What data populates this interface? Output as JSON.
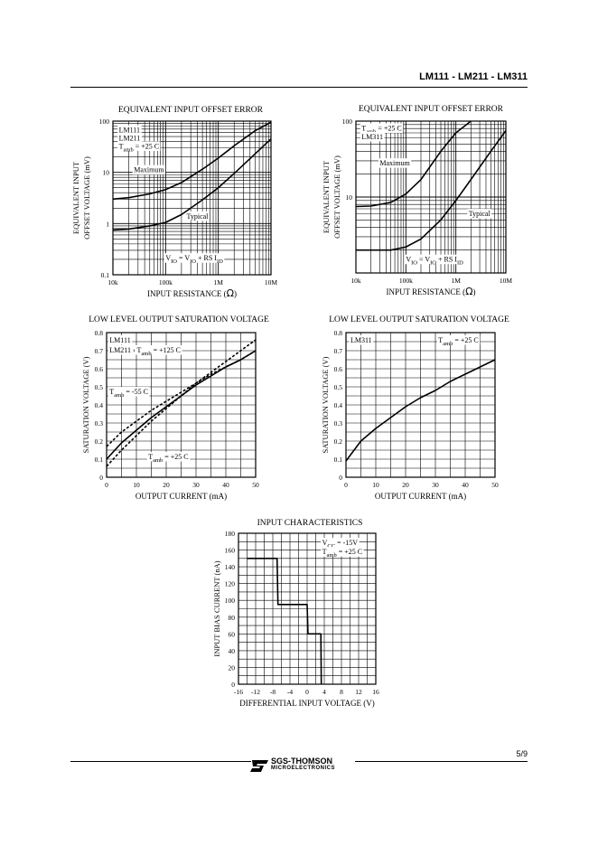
{
  "header": {
    "title": "LM111 - LM211 - LM311"
  },
  "footer": {
    "page": "5/9",
    "logo_line1": "SGS-THOMSON",
    "logo_line2": "MICROELECTRONICS"
  },
  "chart_data": [
    {
      "id": "c1",
      "type": "line",
      "title": "EQUIVALENT INPUT OFFSET ERROR",
      "xscale": "log",
      "yscale": "log",
      "xlim": [
        10000,
        10000000
      ],
      "ylim": [
        0.1,
        100
      ],
      "xlabel": "INPUT RESISTANCE (Ω)",
      "ylabel": [
        "EQUIVALENT INPUT",
        "OFFSET VOLTAGE (mV)"
      ],
      "xticks": [
        {
          "v": 10000,
          "t": "10k"
        },
        {
          "v": 100000,
          "t": "100k"
        },
        {
          "v": 1000000,
          "t": "1M"
        },
        {
          "v": 10000000,
          "t": "10M"
        }
      ],
      "yticks": [
        {
          "v": 0.1,
          "t": "0.1"
        },
        {
          "v": 1,
          "t": "1"
        },
        {
          "v": 10,
          "t": "10"
        },
        {
          "v": 100,
          "t": "100"
        }
      ],
      "series": [
        {
          "name": "Maximum",
          "style": "solid",
          "x": [
            10000,
            20000,
            50000,
            100000,
            200000,
            500000,
            1000000,
            2000000,
            5000000,
            10000000
          ],
          "y": [
            3,
            3.2,
            3.8,
            4.6,
            6.3,
            11.5,
            19,
            33,
            65,
            95
          ]
        },
        {
          "name": "Typical",
          "style": "solid",
          "x": [
            10000,
            20000,
            50000,
            100000,
            200000,
            500000,
            1000000,
            2000000,
            5000000,
            10000000
          ],
          "y": [
            0.75,
            0.78,
            0.9,
            1.05,
            1.5,
            2.9,
            5,
            9.5,
            23,
            45
          ]
        }
      ],
      "annotations": [
        {
          "text": "LM111",
          "x": 13000,
          "y": 60
        },
        {
          "text": "LM211",
          "x": 13000,
          "y": 42
        },
        {
          "text": "Tamb = +25 C",
          "x": 13000,
          "y": 29
        },
        {
          "text": "Maximum",
          "x": 25000,
          "y": 10
        },
        {
          "text": "Typical",
          "x": 250000,
          "y": 1.25
        },
        {
          "text": "VIO = VIO + RS IID",
          "x": 100000,
          "y": 0.19
        }
      ]
    },
    {
      "id": "c2",
      "type": "line",
      "title": "EQUIVALENT INPUT OFFSET ERROR",
      "xscale": "log",
      "yscale": "log",
      "xlim": [
        10000,
        10000000
      ],
      "ylim": [
        1,
        100
      ],
      "xlabel": "INPUT RESISTANCE (Ω)",
      "ylabel": [
        "EQUIVALENT INPUT",
        "OFFSET VOLTAGE (mV)"
      ],
      "xticks": [
        {
          "v": 10000,
          "t": "10k"
        },
        {
          "v": 100000,
          "t": "100k"
        },
        {
          "v": 1000000,
          "t": "1M"
        },
        {
          "v": 10000000,
          "t": "10M"
        }
      ],
      "yticks": [
        {
          "v": 10,
          "t": "10"
        },
        {
          "v": 100,
          "t": "100"
        }
      ],
      "series": [
        {
          "name": "Maximum",
          "style": "solid",
          "x": [
            10000,
            20000,
            50000,
            100000,
            200000,
            500000,
            1000000,
            2000000
          ],
          "y": [
            7.5,
            7.6,
            8.5,
            11,
            17,
            40,
            70,
            100
          ]
        },
        {
          "name": "Typical",
          "style": "solid",
          "x": [
            10000,
            50000,
            100000,
            200000,
            500000,
            1000000,
            2000000,
            5000000,
            10000000
          ],
          "y": [
            2,
            2,
            2.2,
            2.8,
            5,
            9,
            17,
            40,
            75
          ]
        }
      ],
      "annotations": [
        {
          "text": "Tamb = +25 C",
          "x": 13000,
          "y": 75
        },
        {
          "text": "LM311",
          "x": 13000,
          "y": 58
        },
        {
          "text": "Maximum",
          "x": 30000,
          "y": 26
        },
        {
          "text": "Typical",
          "x": 1800000,
          "y": 5.6
        },
        {
          "text": "VIO = VIO + RS IID",
          "x": 100000,
          "y": 1.4
        }
      ]
    },
    {
      "id": "c3",
      "type": "line",
      "title": "LOW LEVEL OUTPUT SATURATION VOLTAGE",
      "xlim": [
        0,
        50
      ],
      "ylim": [
        0,
        0.8
      ],
      "xlabel": "OUTPUT CURRENT (mA)",
      "ylabel": [
        "SATURATION VOLTAGE (V)"
      ],
      "xticks": [
        {
          "v": 0,
          "t": "0"
        },
        {
          "v": 10,
          "t": "10"
        },
        {
          "v": 20,
          "t": "20"
        },
        {
          "v": 30,
          "t": "30"
        },
        {
          "v": 40,
          "t": "40"
        },
        {
          "v": 50,
          "t": "50"
        }
      ],
      "yticks": [
        {
          "v": 0,
          "t": "0"
        },
        {
          "v": 0.1,
          "t": "0.1"
        },
        {
          "v": 0.2,
          "t": "0.2"
        },
        {
          "v": 0.3,
          "t": "0.3"
        },
        {
          "v": 0.4,
          "t": "0.4"
        },
        {
          "v": 0.5,
          "t": "0.5"
        },
        {
          "v": 0.6,
          "t": "0.6"
        },
        {
          "v": 0.7,
          "t": "0.7"
        },
        {
          "v": 0.8,
          "t": "0.8"
        }
      ],
      "series": [
        {
          "name": "Tamb = +25 C",
          "style": "solid",
          "x": [
            0,
            5,
            10,
            15,
            20,
            25,
            30,
            35,
            40,
            45,
            50
          ],
          "y": [
            0.1,
            0.19,
            0.26,
            0.33,
            0.39,
            0.45,
            0.51,
            0.56,
            0.61,
            0.65,
            0.7
          ]
        },
        {
          "name": "Tamb = +125 C",
          "style": "dashed",
          "x": [
            0,
            5,
            10,
            15,
            20,
            25,
            30,
            35,
            40,
            45,
            50
          ],
          "y": [
            0.06,
            0.15,
            0.23,
            0.31,
            0.38,
            0.45,
            0.52,
            0.58,
            0.64,
            0.7,
            0.76
          ]
        },
        {
          "name": "Tamb = -55 C",
          "style": "dashed",
          "x": [
            0,
            5,
            10,
            15,
            20,
            25,
            30,
            35,
            40,
            45,
            50
          ],
          "y": [
            0.17,
            0.25,
            0.31,
            0.37,
            0.42,
            0.47,
            0.52,
            0.57,
            0.61,
            0.65,
            0.7
          ]
        }
      ],
      "annotations": [
        {
          "text": "LM111",
          "x": 1,
          "y": 0.745
        },
        {
          "text": "LM211  ›  Tamb = +125 C",
          "x": 1,
          "y": 0.69
        },
        {
          "text": "Tamb = -55 C",
          "x": 1,
          "y": 0.46
        },
        {
          "text": "Tamb = +25 C",
          "x": 14,
          "y": 0.1
        }
      ]
    },
    {
      "id": "c4",
      "type": "line",
      "title": "LOW LEVEL OUTPUT SATURATION VOLTAGE",
      "xlim": [
        0,
        50
      ],
      "ylim": [
        0,
        0.8
      ],
      "xlabel": "OUTPUT CURRENT (mA)",
      "ylabel": [
        "SATURATION VOLTAGE (V)"
      ],
      "xticks": [
        {
          "v": 0,
          "t": "0"
        },
        {
          "v": 10,
          "t": "10"
        },
        {
          "v": 20,
          "t": "20"
        },
        {
          "v": 30,
          "t": "30"
        },
        {
          "v": 40,
          "t": "40"
        },
        {
          "v": 50,
          "t": "50"
        }
      ],
      "yticks": [
        {
          "v": 0,
          "t": "0"
        },
        {
          "v": 0.1,
          "t": "0.1"
        },
        {
          "v": 0.2,
          "t": "0.2"
        },
        {
          "v": 0.3,
          "t": "0.3"
        },
        {
          "v": 0.4,
          "t": "0.4"
        },
        {
          "v": 0.5,
          "t": "0.5"
        },
        {
          "v": 0.6,
          "t": "0.6"
        },
        {
          "v": 0.7,
          "t": "0.7"
        },
        {
          "v": 0.8,
          "t": "0.8"
        }
      ],
      "series": [
        {
          "name": "LM311 Tamb = +25 C",
          "style": "solid",
          "x": [
            0,
            5,
            10,
            15,
            20,
            25,
            30,
            35,
            40,
            45,
            50
          ],
          "y": [
            0.09,
            0.2,
            0.27,
            0.33,
            0.39,
            0.44,
            0.48,
            0.53,
            0.57,
            0.61,
            0.65
          ]
        }
      ],
      "annotations": [
        {
          "text": "LM311",
          "x": 1.5,
          "y": 0.745
        },
        {
          "text": "Tamb = +25 C",
          "x": 31,
          "y": 0.745
        }
      ]
    },
    {
      "id": "c5",
      "type": "line",
      "title": "INPUT CHARACTERISTICS",
      "xlim": [
        -16,
        16
      ],
      "ylim": [
        0,
        180
      ],
      "xlabel": "DIFFERENTIAL INPUT VOLTAGE (V)",
      "ylabel": [
        "INPUT BIAS CURRENT  (nA)"
      ],
      "xticks": [
        {
          "v": -16,
          "t": "-16"
        },
        {
          "v": -12,
          "t": "-12"
        },
        {
          "v": -8,
          "t": "-8"
        },
        {
          "v": -4,
          "t": "-4"
        },
        {
          "v": 0,
          "t": "0"
        },
        {
          "v": 4,
          "t": "4"
        },
        {
          "v": 8,
          "t": "8"
        },
        {
          "v": 12,
          "t": "12"
        },
        {
          "v": 16,
          "t": "16"
        }
      ],
      "yticks": [
        {
          "v": 0,
          "t": "0"
        },
        {
          "v": 20,
          "t": "20"
        },
        {
          "v": 40,
          "t": "40"
        },
        {
          "v": 60,
          "t": "60"
        },
        {
          "v": 80,
          "t": "80"
        },
        {
          "v": 100,
          "t": "100"
        },
        {
          "v": 120,
          "t": "120"
        },
        {
          "v": 140,
          "t": "140"
        },
        {
          "v": 160,
          "t": "160"
        },
        {
          "v": 180,
          "t": "180"
        }
      ],
      "series": [
        {
          "name": "Input bias current",
          "style": "solid",
          "x": [
            -14,
            -7,
            -6.8,
            -3,
            -2.8,
            0,
            0.2,
            3,
            3.2,
            3.3
          ],
          "y": [
            150,
            150,
            95,
            95,
            95,
            95,
            60,
            60,
            60,
            0
          ]
        }
      ],
      "annotations": [
        {
          "text": "VCC = -15V",
          "x": 3.5,
          "y": 166
        },
        {
          "text": "Tamb = +25 C",
          "x": 3.5,
          "y": 155
        }
      ]
    }
  ]
}
